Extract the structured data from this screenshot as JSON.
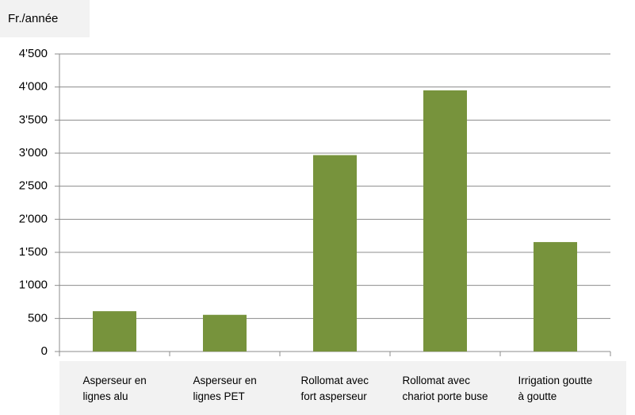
{
  "chart_data": {
    "type": "bar",
    "y_label": "Fr./année",
    "categories": [
      "Asperseur en\nlignes alu",
      "Asperseur en\nlignes PET",
      "Rollomat avec\nfort asperseur",
      "Rollomat avec\nchariot porte buse",
      "Irrigation goutte\nà goutte"
    ],
    "values": [
      610,
      555,
      2970,
      3950,
      1655
    ],
    "color": "#77933c",
    "ylim": [
      0,
      4500
    ],
    "yticks": [
      0,
      500,
      {
        "value": 1000,
        "label": "1'000"
      },
      {
        "value": 1500,
        "label": "1'500"
      },
      {
        "value": 2000,
        "label": "2'000"
      },
      {
        "value": 2500,
        "label": "2'500"
      },
      {
        "value": 3000,
        "label": "3'000"
      },
      {
        "value": 3500,
        "label": "3'500"
      },
      {
        "value": 4000,
        "label": "4'000"
      },
      {
        "value": 4500,
        "label": "4'500"
      }
    ],
    "grid": true
  }
}
